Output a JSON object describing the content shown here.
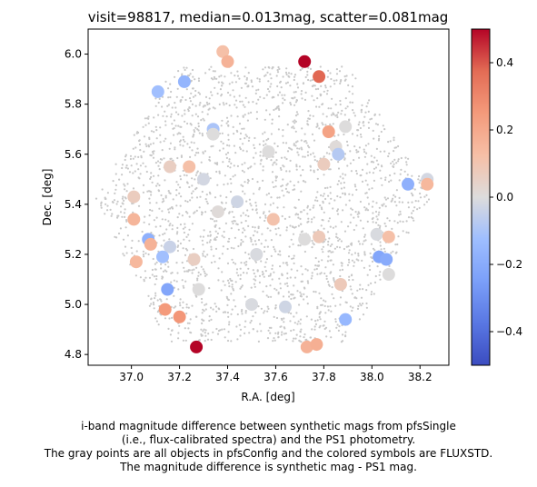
{
  "chart_data": {
    "type": "scatter",
    "title": "visit=98817, median=0.013mag, scatter=0.081mag",
    "xlabel": "R.A. [deg]",
    "ylabel": "Dec. [deg]",
    "xlim": [
      36.82,
      38.32
    ],
    "ylim": [
      4.757,
      6.1
    ],
    "xticks": [
      "37.0",
      "37.2",
      "37.4",
      "37.6",
      "37.8",
      "38.0",
      "38.2"
    ],
    "yticks": [
      "4.8",
      "5.0",
      "5.2",
      "5.4",
      "5.6",
      "5.8",
      "6.0"
    ],
    "background_points": {
      "description_shape": "hexagon",
      "vertices": [
        [
          36.85,
          5.42
        ],
        [
          37.17,
          5.95
        ],
        [
          37.9,
          5.95
        ],
        [
          38.25,
          5.44
        ],
        [
          37.9,
          4.85
        ],
        [
          37.15,
          4.85
        ]
      ],
      "color": "#c8c8c8"
    },
    "colorbar": {
      "cmap": "coolwarm",
      "vmin": -0.5,
      "vmax": 0.5,
      "ticks": [
        "0.4",
        "0.2",
        "0.0",
        "−0.2",
        "−0.4"
      ],
      "tick_values": [
        0.4,
        0.2,
        0.0,
        -0.2,
        -0.4
      ]
    },
    "series": [
      {
        "points": [
          {
            "x": 37.38,
            "y": 6.01,
            "v": 0.12
          },
          {
            "x": 37.4,
            "y": 5.97,
            "v": 0.17
          },
          {
            "x": 37.72,
            "y": 5.97,
            "v": 0.5
          },
          {
            "x": 37.78,
            "y": 5.91,
            "v": 0.38
          },
          {
            "x": 37.11,
            "y": 5.85,
            "v": -0.12
          },
          {
            "x": 37.22,
            "y": 5.89,
            "v": -0.16
          },
          {
            "x": 37.34,
            "y": 5.7,
            "v": -0.1
          },
          {
            "x": 37.34,
            "y": 5.68,
            "v": 0.0
          },
          {
            "x": 37.82,
            "y": 5.69,
            "v": 0.22
          },
          {
            "x": 37.89,
            "y": 5.71,
            "v": 0.0
          },
          {
            "x": 37.85,
            "y": 5.63,
            "v": 0.01
          },
          {
            "x": 37.86,
            "y": 5.6,
            "v": -0.08
          },
          {
            "x": 37.57,
            "y": 5.61,
            "v": 0.0
          },
          {
            "x": 37.8,
            "y": 5.56,
            "v": 0.07
          },
          {
            "x": 37.16,
            "y": 5.55,
            "v": 0.06
          },
          {
            "x": 37.24,
            "y": 5.55,
            "v": 0.12
          },
          {
            "x": 37.3,
            "y": 5.5,
            "v": -0.02
          },
          {
            "x": 38.15,
            "y": 5.48,
            "v": -0.18
          },
          {
            "x": 38.23,
            "y": 5.5,
            "v": -0.02
          },
          {
            "x": 38.23,
            "y": 5.48,
            "v": 0.15
          },
          {
            "x": 37.01,
            "y": 5.43,
            "v": 0.07
          },
          {
            "x": 37.44,
            "y": 5.41,
            "v": -0.03
          },
          {
            "x": 37.36,
            "y": 5.37,
            "v": 0.01
          },
          {
            "x": 37.59,
            "y": 5.34,
            "v": 0.11
          },
          {
            "x": 37.01,
            "y": 5.34,
            "v": 0.16
          },
          {
            "x": 37.72,
            "y": 5.26,
            "v": 0.0
          },
          {
            "x": 37.78,
            "y": 5.27,
            "v": 0.08
          },
          {
            "x": 38.02,
            "y": 5.28,
            "v": -0.01
          },
          {
            "x": 38.07,
            "y": 5.27,
            "v": 0.12
          },
          {
            "x": 37.07,
            "y": 5.26,
            "v": -0.18
          },
          {
            "x": 37.08,
            "y": 5.24,
            "v": 0.17
          },
          {
            "x": 37.16,
            "y": 5.23,
            "v": -0.04
          },
          {
            "x": 37.52,
            "y": 5.2,
            "v": -0.01
          },
          {
            "x": 37.13,
            "y": 5.19,
            "v": -0.12
          },
          {
            "x": 37.26,
            "y": 5.18,
            "v": 0.06
          },
          {
            "x": 38.03,
            "y": 5.19,
            "v": -0.22
          },
          {
            "x": 38.06,
            "y": 5.18,
            "v": -0.2
          },
          {
            "x": 37.02,
            "y": 5.17,
            "v": 0.15
          },
          {
            "x": 38.07,
            "y": 5.12,
            "v": 0.0
          },
          {
            "x": 37.87,
            "y": 5.08,
            "v": 0.08
          },
          {
            "x": 37.15,
            "y": 5.06,
            "v": -0.22
          },
          {
            "x": 37.28,
            "y": 5.06,
            "v": 0.0
          },
          {
            "x": 37.5,
            "y": 5.0,
            "v": -0.01
          },
          {
            "x": 37.64,
            "y": 4.99,
            "v": -0.03
          },
          {
            "x": 37.14,
            "y": 4.98,
            "v": 0.25
          },
          {
            "x": 37.2,
            "y": 4.95,
            "v": 0.26
          },
          {
            "x": 37.89,
            "y": 4.94,
            "v": -0.15
          },
          {
            "x": 37.27,
            "y": 4.83,
            "v": 0.5
          },
          {
            "x": 37.73,
            "y": 4.83,
            "v": 0.17
          },
          {
            "x": 37.77,
            "y": 4.84,
            "v": 0.18
          }
        ]
      }
    ]
  },
  "caption": [
    "i-band magnitude difference between synthetic mags from pfsSingle",
    "(i.e., flux-calibrated spectra) and the PS1 photometry.",
    "The gray points are all objects in pfsConfig and the colored symbols are FLUXSTD.",
    "The magnitude difference is synthetic mag - PS1 mag."
  ]
}
